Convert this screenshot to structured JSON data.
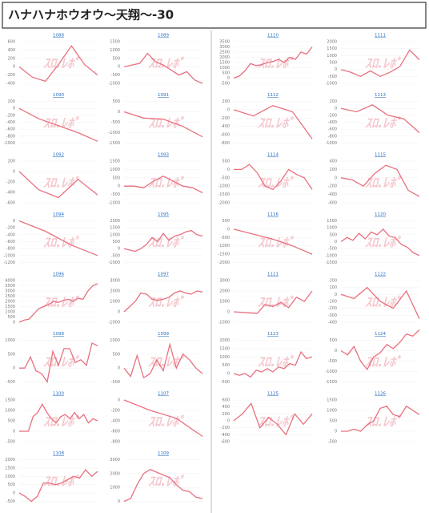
{
  "header": {
    "title": "ハナハナホウオウ～天翔～-30"
  },
  "watermark": "ｽﾛ.ﾚﾎﾟ",
  "chart_data": [
    {
      "type": "line",
      "title": "1088",
      "color": "#e8707f",
      "ylim": [
        -400,
        600
      ],
      "yticks": [
        600,
        400,
        200,
        0,
        -200,
        -400
      ],
      "values": [
        0,
        -250,
        -350,
        50,
        500,
        50,
        -200
      ]
    },
    {
      "type": "line",
      "title": "1089",
      "color": "#e8707f",
      "ylim": [
        -1000,
        1500
      ],
      "yticks": [
        1500,
        1000,
        500,
        0,
        -500,
        -1000
      ],
      "values": [
        0,
        100,
        200,
        800,
        300,
        100,
        -200,
        -500,
        -300,
        -800,
        -1000
      ]
    },
    {
      "type": "line",
      "title": "1090",
      "color": "#e8707f",
      "ylim": [
        -1000,
        200
      ],
      "yticks": [
        200,
        0,
        -200,
        -400,
        -600,
        -800,
        -1000
      ],
      "values": [
        0,
        -300,
        -500,
        -700,
        -950
      ]
    },
    {
      "type": "line",
      "title": "1091",
      "color": "#e8707f",
      "ylim": [
        -1500,
        500
      ],
      "yticks": [
        500,
        0,
        -500,
        -1000,
        -1500
      ],
      "values": [
        0,
        -300,
        -350,
        -700,
        -1200
      ]
    },
    {
      "type": "line",
      "title": "1092",
      "color": "#e8707f",
      "ylim": [
        -600,
        200
      ],
      "yticks": [
        200,
        0,
        -200,
        -400,
        -600
      ],
      "values": [
        0,
        -350,
        -500,
        -150,
        -450
      ]
    },
    {
      "type": "line",
      "title": "1093",
      "color": "#e8707f",
      "ylim": [
        -1000,
        1500
      ],
      "yticks": [
        1500,
        1000,
        500,
        0,
        -500,
        -1000
      ],
      "values": [
        0,
        0,
        -100,
        300,
        600,
        300,
        0,
        -100,
        -400
      ]
    },
    {
      "type": "line",
      "title": "1094",
      "color": "#e8707f",
      "ylim": [
        -1200,
        0
      ],
      "yticks": [
        0,
        -200,
        -400,
        -600,
        -800,
        -1000,
        -1200
      ],
      "values": [
        0,
        -300,
        -700,
        -1000
      ]
    },
    {
      "type": "line",
      "title": "1095",
      "color": "#e8707f",
      "ylim": [
        -1000,
        2000
      ],
      "yticks": [
        2000,
        1500,
        1000,
        500,
        0,
        -500,
        -1000
      ],
      "values": [
        0,
        -100,
        -200,
        0,
        300,
        800,
        500,
        1100,
        600,
        900,
        1000,
        1200,
        1300,
        1000,
        900
      ]
    },
    {
      "type": "line",
      "title": "1096",
      "color": "#e8707f",
      "ylim": [
        0,
        4000
      ],
      "yticks": [
        4000,
        3500,
        3000,
        2500,
        2000,
        1500,
        1000,
        500,
        0
      ],
      "values": [
        0,
        200,
        300,
        800,
        1300,
        1500,
        1700,
        2000,
        1900,
        2100,
        2200,
        2000,
        2300,
        2200,
        3000,
        3500,
        3700
      ]
    },
    {
      "type": "line",
      "title": "1097",
      "color": "#e8707f",
      "ylim": [
        -1000,
        3000
      ],
      "yticks": [
        3000,
        2000,
        1000,
        0,
        -1000
      ],
      "values": [
        0,
        500,
        1000,
        1800,
        1700,
        1200,
        1100,
        1200,
        1400,
        1800,
        2000,
        1800,
        1700,
        2000,
        1900
      ]
    },
    {
      "type": "line",
      "title": "1098",
      "color": "#e8707f",
      "ylim": [
        -500,
        1000
      ],
      "yticks": [
        1000,
        500,
        0,
        -500
      ],
      "values": [
        0,
        0,
        400,
        -100,
        -200,
        -500,
        600,
        100,
        700,
        700,
        200,
        300,
        100,
        900,
        800
      ]
    },
    {
      "type": "line",
      "title": "1099",
      "color": "#e8707f",
      "ylim": [
        -500,
        1000
      ],
      "yticks": [
        1000,
        500,
        0,
        -500
      ],
      "values": [
        0,
        -300,
        450,
        -350,
        -200,
        300,
        -100,
        850,
        0,
        500,
        300,
        0,
        -200
      ]
    },
    {
      "type": "line",
      "title": "1100",
      "color": "#e8707f",
      "ylim": [
        -500,
        1500
      ],
      "yticks": [
        1500,
        1000,
        500,
        0,
        -500
      ],
      "values": [
        0,
        0,
        0,
        700,
        900,
        1300,
        900,
        600,
        400,
        700,
        800,
        600,
        900,
        600,
        800,
        400,
        600,
        500
      ]
    },
    {
      "type": "line",
      "title": "1107",
      "color": "#e8707f",
      "ylim": [
        -800,
        0
      ],
      "yticks": [
        0,
        -200,
        -400,
        -600,
        -800
      ],
      "values": [
        0,
        -200,
        -350,
        -700
      ]
    },
    {
      "type": "line",
      "title": "1108",
      "color": "#e8707f",
      "ylim": [
        -500,
        2000
      ],
      "yticks": [
        2000,
        1500,
        1000,
        500,
        0,
        -500
      ],
      "values": [
        0,
        -200,
        -500,
        -200,
        600,
        600,
        500,
        600,
        800,
        1000,
        900,
        1400,
        1000,
        1300
      ]
    },
    {
      "type": "line",
      "title": "1109",
      "color": "#e8707f",
      "ylim": [
        0,
        3000
      ],
      "yticks": [
        3000,
        2000,
        1000,
        0
      ],
      "values": [
        0,
        200,
        1200,
        2000,
        2300,
        2100,
        1900,
        1700,
        1200,
        800,
        700,
        300,
        200
      ]
    },
    {
      "type": "line",
      "title": "1110",
      "color": "#e8707f",
      "ylim": [
        -500,
        3500
      ],
      "yticks": [
        3500,
        3000,
        2500,
        2000,
        1500,
        1000,
        500,
        0,
        -500
      ],
      "values": [
        0,
        200,
        700,
        1400,
        1200,
        1300,
        1500,
        1600,
        1800,
        1500,
        2000,
        1800,
        2500,
        2300,
        3000
      ]
    },
    {
      "type": "line",
      "title": "1111",
      "color": "#e8707f",
      "ylim": [
        -1000,
        2000
      ],
      "yticks": [
        2000,
        1500,
        1000,
        500,
        0,
        -500,
        -1000
      ],
      "values": [
        0,
        -200,
        -500,
        -100,
        -500,
        -200,
        200,
        1400,
        700
      ]
    },
    {
      "type": "line",
      "title": "1112",
      "color": "#e8707f",
      "ylim": [
        -800,
        200
      ],
      "yticks": [
        200,
        0,
        -200,
        -400,
        -600,
        -800
      ],
      "values": [
        0,
        -150,
        100,
        -50,
        -700
      ]
    },
    {
      "type": "line",
      "title": "1113",
      "color": "#e8707f",
      "ylim": [
        -1000,
        200
      ],
      "yticks": [
        200,
        0,
        -200,
        -400,
        -600,
        -800,
        -1000
      ],
      "values": [
        0,
        -100,
        100,
        -200,
        -300,
        -700
      ]
    },
    {
      "type": "line",
      "title": "1114",
      "color": "#e8707f",
      "ylim": [
        -2000,
        500
      ],
      "yticks": [
        500,
        0,
        -500,
        -1000,
        -1500,
        -2000
      ],
      "values": [
        0,
        0,
        300,
        -200,
        -1000,
        -1200,
        -700,
        0,
        -300,
        -500,
        -1200
      ]
    },
    {
      "type": "line",
      "title": "1115",
      "color": "#e8707f",
      "ylim": [
        -600,
        400
      ],
      "yticks": [
        400,
        200,
        0,
        -200,
        -400,
        -600
      ],
      "values": [
        0,
        -50,
        -200,
        100,
        300,
        200,
        -300,
        -450
      ]
    },
    {
      "type": "line",
      "title": "1116",
      "color": "#e8707f",
      "ylim": [
        -2000,
        500
      ],
      "yticks": [
        500,
        0,
        -500,
        -1000,
        -1500,
        -2000
      ],
      "values": [
        0,
        -300,
        -600,
        -1000,
        -1500
      ]
    },
    {
      "type": "line",
      "title": "1120",
      "color": "#e8707f",
      "ylim": [
        -1500,
        1500
      ],
      "yticks": [
        1500,
        1000,
        500,
        0,
        -500,
        -1000,
        -1500
      ],
      "values": [
        0,
        300,
        100,
        600,
        200,
        700,
        500,
        900,
        400,
        300,
        -200,
        -400,
        -800,
        -1000
      ]
    },
    {
      "type": "line",
      "title": "1121",
      "color": "#e8707f",
      "ylim": [
        -1000,
        3000
      ],
      "yticks": [
        3000,
        2000,
        1000,
        0,
        -1000
      ],
      "values": [
        0,
        -50,
        -100,
        -150,
        700,
        500,
        900,
        400,
        1400,
        1000,
        2000
      ]
    },
    {
      "type": "line",
      "title": "1122",
      "color": "#e8707f",
      "ylim": [
        -400,
        200
      ],
      "yticks": [
        200,
        100,
        0,
        -100,
        -200,
        -300,
        -400
      ],
      "values": [
        0,
        -60,
        100,
        -100,
        -200,
        50,
        -350
      ]
    },
    {
      "type": "line",
      "title": "1123",
      "color": "#e8707f",
      "ylim": [
        -500,
        2000
      ],
      "yticks": [
        2000,
        1500,
        1000,
        500,
        0,
        -500
      ],
      "values": [
        0,
        -100,
        0,
        -200,
        200,
        100,
        300,
        100,
        400,
        300,
        600,
        500,
        1300,
        900,
        1000
      ]
    },
    {
      "type": "line",
      "title": "1124",
      "color": "#e8707f",
      "ylim": [
        -1500,
        500
      ],
      "yticks": [
        500,
        0,
        -500,
        -1000,
        -1500
      ],
      "values": [
        0,
        -200,
        200,
        -500,
        -900,
        -300,
        -100,
        300,
        100,
        400,
        800,
        700,
        1000
      ]
    },
    {
      "type": "line",
      "title": "1125",
      "color": "#e8707f",
      "ylim": [
        -600,
        600
      ],
      "yticks": [
        600,
        400,
        200,
        0,
        -200,
        -400,
        -600
      ],
      "values": [
        0,
        200,
        500,
        -200,
        100,
        -100,
        -400,
        200,
        -100,
        200
      ]
    },
    {
      "type": "line",
      "title": "1126",
      "color": "#e8707f",
      "ylim": [
        -500,
        1500
      ],
      "yticks": [
        1500,
        1000,
        500,
        0,
        -500
      ],
      "values": [
        0,
        0,
        100,
        0,
        300,
        500,
        1100,
        1200,
        800,
        700,
        1200,
        1000,
        800
      ]
    }
  ]
}
